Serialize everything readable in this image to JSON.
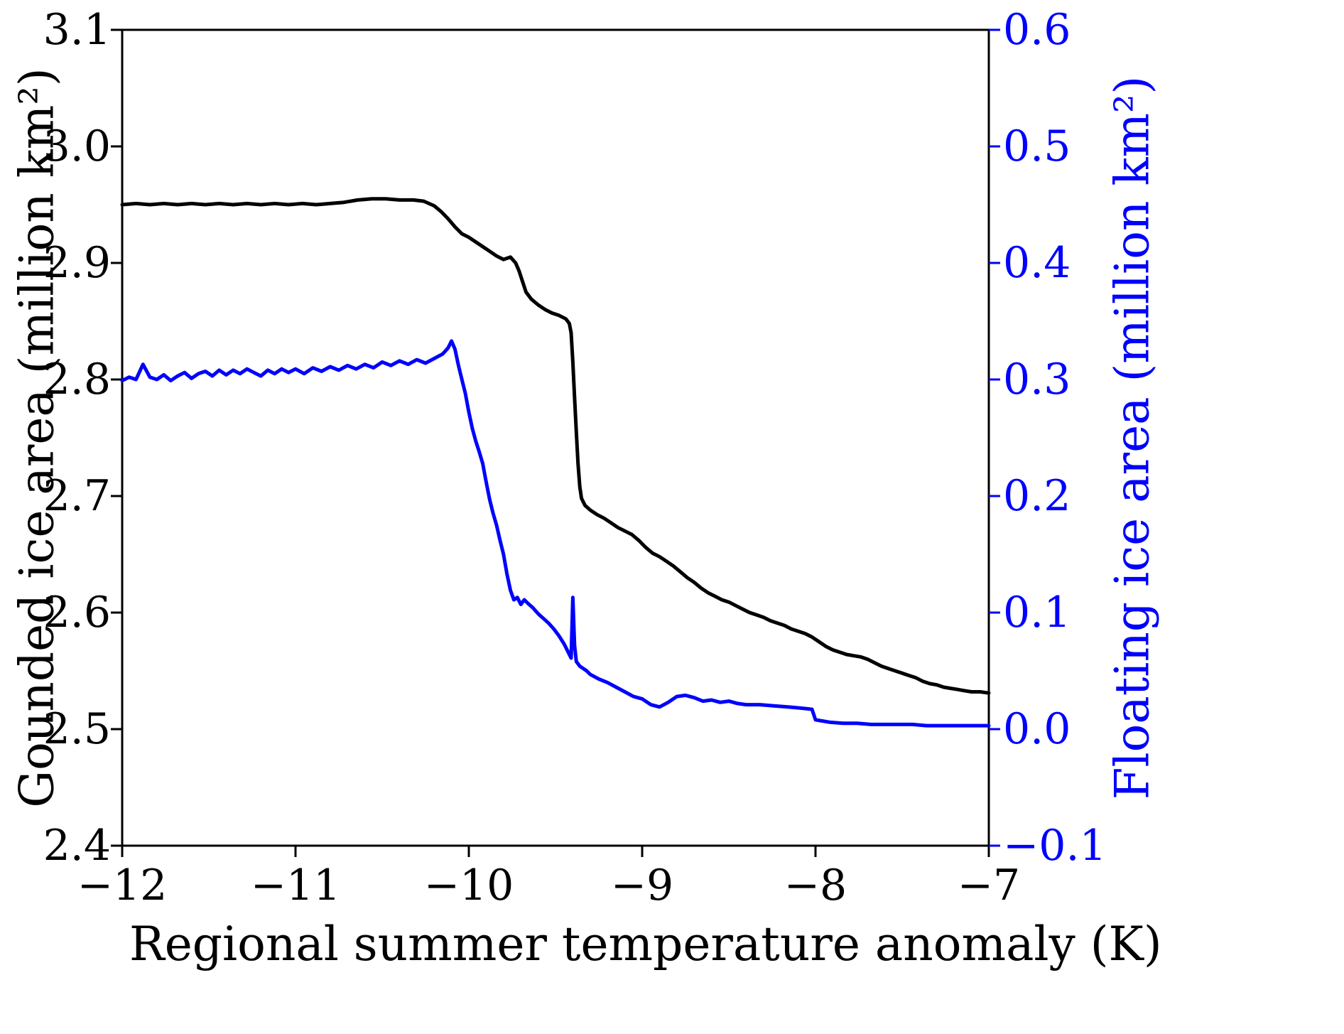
{
  "chart_data": {
    "type": "line",
    "title": "",
    "xlabel": "Regional summer temperature anomaly (K)",
    "ylabel_left": "Gounded ice area (million km²)",
    "ylabel_right": "Floating ice area (million km²)",
    "xlim": [
      -12,
      -7
    ],
    "ylim_left": [
      2.4,
      3.1
    ],
    "ylim_right": [
      -0.1,
      0.6
    ],
    "grid": false,
    "legend": "none",
    "colors": {
      "axis": "#000000",
      "grounded_line": "#000000",
      "floating_line": "#0000ff",
      "right_axis_text": "#0000ff"
    },
    "x_ticks": [
      {
        "v": -12,
        "label": "−12"
      },
      {
        "v": -11,
        "label": "−11"
      },
      {
        "v": -10,
        "label": "−10"
      },
      {
        "v": -9,
        "label": "−9"
      },
      {
        "v": -8,
        "label": "−8"
      },
      {
        "v": -7,
        "label": "−7"
      }
    ],
    "y_ticks_left": [
      {
        "v": 2.4,
        "label": "2.4"
      },
      {
        "v": 2.5,
        "label": "2.5"
      },
      {
        "v": 2.6,
        "label": "2.6"
      },
      {
        "v": 2.7,
        "label": "2.7"
      },
      {
        "v": 2.8,
        "label": "2.8"
      },
      {
        "v": 2.9,
        "label": "2.9"
      },
      {
        "v": 3.0,
        "label": "3.0"
      },
      {
        "v": 3.1,
        "label": "3.1"
      }
    ],
    "y_ticks_right": [
      {
        "v": -0.1,
        "label": "−0.1"
      },
      {
        "v": 0.0,
        "label": "0.0"
      },
      {
        "v": 0.1,
        "label": "0.1"
      },
      {
        "v": 0.2,
        "label": "0.2"
      },
      {
        "v": 0.3,
        "label": "0.3"
      },
      {
        "v": 0.4,
        "label": "0.4"
      },
      {
        "v": 0.5,
        "label": "0.5"
      },
      {
        "v": 0.6,
        "label": "0.6"
      }
    ],
    "series": [
      {
        "id": "grounded-ice-line",
        "name": "Grounded ice area",
        "axis": "left",
        "color": "#000000",
        "width": 5,
        "points": [
          [
            -12.0,
            2.95
          ],
          [
            -11.92,
            2.951
          ],
          [
            -11.84,
            2.95
          ],
          [
            -11.76,
            2.951
          ],
          [
            -11.68,
            2.95
          ],
          [
            -11.6,
            2.951
          ],
          [
            -11.52,
            2.95
          ],
          [
            -11.44,
            2.951
          ],
          [
            -11.36,
            2.95
          ],
          [
            -11.28,
            2.951
          ],
          [
            -11.2,
            2.95
          ],
          [
            -11.12,
            2.951
          ],
          [
            -11.04,
            2.95
          ],
          [
            -10.96,
            2.951
          ],
          [
            -10.88,
            2.95
          ],
          [
            -10.8,
            2.951
          ],
          [
            -10.72,
            2.952
          ],
          [
            -10.64,
            2.954
          ],
          [
            -10.56,
            2.955
          ],
          [
            -10.48,
            2.955
          ],
          [
            -10.4,
            2.954
          ],
          [
            -10.32,
            2.954
          ],
          [
            -10.26,
            2.953
          ],
          [
            -10.2,
            2.949
          ],
          [
            -10.16,
            2.944
          ],
          [
            -10.12,
            2.938
          ],
          [
            -10.08,
            2.931
          ],
          [
            -10.04,
            2.925
          ],
          [
            -10.0,
            2.922
          ],
          [
            -9.96,
            2.918
          ],
          [
            -9.92,
            2.914
          ],
          [
            -9.88,
            2.91
          ],
          [
            -9.84,
            2.906
          ],
          [
            -9.8,
            2.903
          ],
          [
            -9.76,
            2.905
          ],
          [
            -9.73,
            2.9
          ],
          [
            -9.71,
            2.893
          ],
          [
            -9.69,
            2.884
          ],
          [
            -9.67,
            2.875
          ],
          [
            -9.64,
            2.869
          ],
          [
            -9.6,
            2.864
          ],
          [
            -9.56,
            2.86
          ],
          [
            -9.52,
            2.857
          ],
          [
            -9.48,
            2.855
          ],
          [
            -9.44,
            2.852
          ],
          [
            -9.42,
            2.848
          ],
          [
            -9.41,
            2.84
          ],
          [
            -9.4,
            2.815
          ],
          [
            -9.39,
            2.785
          ],
          [
            -9.38,
            2.755
          ],
          [
            -9.37,
            2.728
          ],
          [
            -9.36,
            2.708
          ],
          [
            -9.35,
            2.698
          ],
          [
            -9.33,
            2.692
          ],
          [
            -9.3,
            2.688
          ],
          [
            -9.26,
            2.684
          ],
          [
            -9.22,
            2.681
          ],
          [
            -9.18,
            2.677
          ],
          [
            -9.14,
            2.673
          ],
          [
            -9.1,
            2.67
          ],
          [
            -9.06,
            2.667
          ],
          [
            -9.02,
            2.662
          ],
          [
            -8.98,
            2.656
          ],
          [
            -8.94,
            2.651
          ],
          [
            -8.9,
            2.648
          ],
          [
            -8.86,
            2.644
          ],
          [
            -8.82,
            2.64
          ],
          [
            -8.78,
            2.635
          ],
          [
            -8.74,
            2.63
          ],
          [
            -8.7,
            2.626
          ],
          [
            -8.66,
            2.621
          ],
          [
            -8.62,
            2.617
          ],
          [
            -8.58,
            2.614
          ],
          [
            -8.54,
            2.611
          ],
          [
            -8.5,
            2.609
          ],
          [
            -8.46,
            2.606
          ],
          [
            -8.42,
            2.603
          ],
          [
            -8.38,
            2.6
          ],
          [
            -8.34,
            2.598
          ],
          [
            -8.3,
            2.596
          ],
          [
            -8.26,
            2.593
          ],
          [
            -8.22,
            2.591
          ],
          [
            -8.18,
            2.589
          ],
          [
            -8.14,
            2.586
          ],
          [
            -8.1,
            2.584
          ],
          [
            -8.06,
            2.582
          ],
          [
            -8.02,
            2.579
          ],
          [
            -7.98,
            2.575
          ],
          [
            -7.94,
            2.571
          ],
          [
            -7.9,
            2.568
          ],
          [
            -7.86,
            2.566
          ],
          [
            -7.82,
            2.564
          ],
          [
            -7.78,
            2.563
          ],
          [
            -7.74,
            2.562
          ],
          [
            -7.7,
            2.56
          ],
          [
            -7.66,
            2.557
          ],
          [
            -7.62,
            2.554
          ],
          [
            -7.58,
            2.552
          ],
          [
            -7.54,
            2.55
          ],
          [
            -7.5,
            2.548
          ],
          [
            -7.46,
            2.546
          ],
          [
            -7.42,
            2.544
          ],
          [
            -7.38,
            2.541
          ],
          [
            -7.34,
            2.539
          ],
          [
            -7.3,
            2.538
          ],
          [
            -7.26,
            2.536
          ],
          [
            -7.22,
            2.535
          ],
          [
            -7.18,
            2.534
          ],
          [
            -7.14,
            2.533
          ],
          [
            -7.1,
            2.532
          ],
          [
            -7.05,
            2.532
          ],
          [
            -7.0,
            2.531
          ]
        ]
      },
      {
        "id": "floating-ice-line",
        "name": "Floating ice area",
        "axis": "right",
        "color": "#0000ff",
        "width": 5,
        "points": [
          [
            -12.0,
            0.299
          ],
          [
            -11.96,
            0.302
          ],
          [
            -11.92,
            0.3
          ],
          [
            -11.88,
            0.313
          ],
          [
            -11.84,
            0.302
          ],
          [
            -11.8,
            0.3
          ],
          [
            -11.76,
            0.304
          ],
          [
            -11.72,
            0.299
          ],
          [
            -11.68,
            0.303
          ],
          [
            -11.64,
            0.306
          ],
          [
            -11.6,
            0.301
          ],
          [
            -11.56,
            0.305
          ],
          [
            -11.52,
            0.307
          ],
          [
            -11.48,
            0.303
          ],
          [
            -11.44,
            0.308
          ],
          [
            -11.4,
            0.304
          ],
          [
            -11.36,
            0.308
          ],
          [
            -11.32,
            0.305
          ],
          [
            -11.28,
            0.309
          ],
          [
            -11.24,
            0.306
          ],
          [
            -11.2,
            0.303
          ],
          [
            -11.16,
            0.308
          ],
          [
            -11.12,
            0.305
          ],
          [
            -11.08,
            0.309
          ],
          [
            -11.04,
            0.306
          ],
          [
            -11.0,
            0.309
          ],
          [
            -10.95,
            0.305
          ],
          [
            -10.9,
            0.31
          ],
          [
            -10.85,
            0.307
          ],
          [
            -10.8,
            0.311
          ],
          [
            -10.75,
            0.308
          ],
          [
            -10.7,
            0.312
          ],
          [
            -10.65,
            0.309
          ],
          [
            -10.6,
            0.313
          ],
          [
            -10.55,
            0.31
          ],
          [
            -10.5,
            0.315
          ],
          [
            -10.45,
            0.312
          ],
          [
            -10.4,
            0.316
          ],
          [
            -10.35,
            0.313
          ],
          [
            -10.3,
            0.317
          ],
          [
            -10.25,
            0.314
          ],
          [
            -10.2,
            0.318
          ],
          [
            -10.15,
            0.322
          ],
          [
            -10.12,
            0.327
          ],
          [
            -10.1,
            0.333
          ],
          [
            -10.08,
            0.326
          ],
          [
            -10.06,
            0.312
          ],
          [
            -10.04,
            0.3
          ],
          [
            -10.02,
            0.288
          ],
          [
            -10.0,
            0.272
          ],
          [
            -9.98,
            0.258
          ],
          [
            -9.96,
            0.247
          ],
          [
            -9.94,
            0.238
          ],
          [
            -9.92,
            0.228
          ],
          [
            -9.9,
            0.212
          ],
          [
            -9.88,
            0.197
          ],
          [
            -9.86,
            0.185
          ],
          [
            -9.84,
            0.175
          ],
          [
            -9.82,
            0.162
          ],
          [
            -9.8,
            0.15
          ],
          [
            -9.78,
            0.133
          ],
          [
            -9.76,
            0.119
          ],
          [
            -9.74,
            0.111
          ],
          [
            -9.72,
            0.113
          ],
          [
            -9.7,
            0.107
          ],
          [
            -9.68,
            0.111
          ],
          [
            -9.66,
            0.108
          ],
          [
            -9.63,
            0.104
          ],
          [
            -9.6,
            0.099
          ],
          [
            -9.57,
            0.095
          ],
          [
            -9.54,
            0.091
          ],
          [
            -9.51,
            0.086
          ],
          [
            -9.48,
            0.08
          ],
          [
            -9.45,
            0.073
          ],
          [
            -9.43,
            0.067
          ],
          [
            -9.41,
            0.061
          ],
          [
            -9.4,
            0.113
          ],
          [
            -9.39,
            0.072
          ],
          [
            -9.38,
            0.058
          ],
          [
            -9.36,
            0.054
          ],
          [
            -9.34,
            0.052
          ],
          [
            -9.32,
            0.05
          ],
          [
            -9.3,
            0.047
          ],
          [
            -9.25,
            0.043
          ],
          [
            -9.2,
            0.04
          ],
          [
            -9.15,
            0.036
          ],
          [
            -9.1,
            0.032
          ],
          [
            -9.05,
            0.028
          ],
          [
            -9.0,
            0.026
          ],
          [
            -8.95,
            0.021
          ],
          [
            -8.9,
            0.019
          ],
          [
            -8.85,
            0.023
          ],
          [
            -8.8,
            0.028
          ],
          [
            -8.75,
            0.029
          ],
          [
            -8.7,
            0.027
          ],
          [
            -8.65,
            0.024
          ],
          [
            -8.6,
            0.025
          ],
          [
            -8.55,
            0.023
          ],
          [
            -8.5,
            0.024
          ],
          [
            -8.45,
            0.022
          ],
          [
            -8.4,
            0.021
          ],
          [
            -8.32,
            0.021
          ],
          [
            -8.24,
            0.02
          ],
          [
            -8.16,
            0.019
          ],
          [
            -8.08,
            0.018
          ],
          [
            -8.02,
            0.017
          ],
          [
            -8.0,
            0.008
          ],
          [
            -7.92,
            0.006
          ],
          [
            -7.84,
            0.005
          ],
          [
            -7.76,
            0.005
          ],
          [
            -7.68,
            0.004
          ],
          [
            -7.6,
            0.004
          ],
          [
            -7.52,
            0.004
          ],
          [
            -7.44,
            0.004
          ],
          [
            -7.36,
            0.003
          ],
          [
            -7.28,
            0.003
          ],
          [
            -7.2,
            0.003
          ],
          [
            -7.12,
            0.003
          ],
          [
            -7.04,
            0.003
          ],
          [
            -7.0,
            0.003
          ]
        ]
      }
    ]
  }
}
